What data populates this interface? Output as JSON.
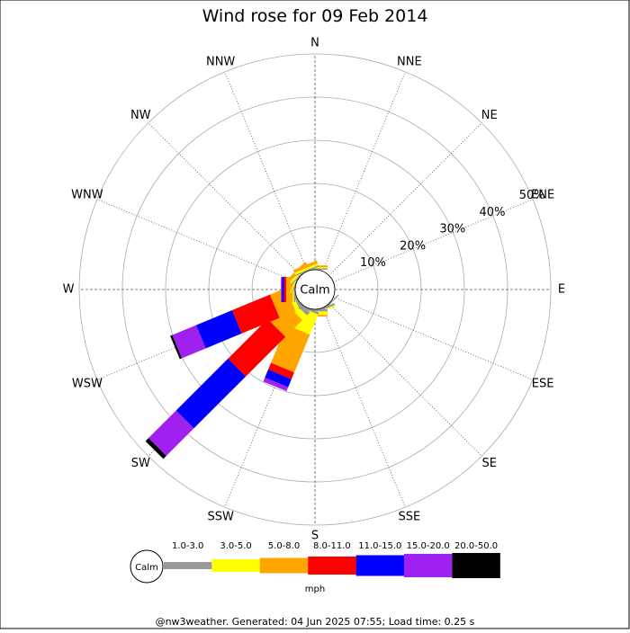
{
  "chart_data": {
    "type": "windrose",
    "title": "Wind rose for 09 Feb 2014",
    "directions": [
      "N",
      "NNE",
      "NE",
      "ENE",
      "E",
      "ESE",
      "SE",
      "SSE",
      "S",
      "SSW",
      "SW",
      "WSW",
      "W",
      "WNW",
      "NW",
      "NNW"
    ],
    "calm_label": "Calm",
    "rlim": [
      0,
      50
    ],
    "rticks": [
      {
        "value": 10,
        "label": "10%"
      },
      {
        "value": 20,
        "label": "20%"
      },
      {
        "value": 30,
        "label": "30%"
      },
      {
        "value": 40,
        "label": "40%"
      },
      {
        "value": 50,
        "label": "50%"
      }
    ],
    "series": [
      {
        "name": "1.0-3.0",
        "color": "#999999",
        "values": [
          0.3,
          0,
          0,
          0,
          0,
          0,
          0.3,
          0.5,
          0.5,
          0.5,
          1,
          0.5,
          0.3,
          0.2,
          0.3,
          0.3
        ]
      },
      {
        "name": "3.0-5.0",
        "color": "#ffff00",
        "values": [
          0.3,
          0,
          0,
          0,
          0,
          0,
          0,
          0.3,
          0.8,
          5,
          1.5,
          1,
          0.3,
          0.3,
          0.5,
          0.5
        ]
      },
      {
        "name": "5.0-8.0",
        "color": "#ffa500",
        "values": [
          0.4,
          0,
          0,
          0,
          0,
          0,
          0,
          0,
          0.4,
          9.5,
          5.5,
          4,
          1.5,
          0.5,
          0.8,
          0.7
        ]
      },
      {
        "name": "8.0-11.0",
        "color": "#ff0000",
        "values": [
          0,
          0,
          0,
          0,
          0,
          0,
          0,
          0,
          0,
          1.7,
          13,
          9.5,
          0.5,
          0,
          0,
          0
        ]
      },
      {
        "name": "11.0-15.0",
        "color": "#0000ff",
        "values": [
          0,
          0,
          0,
          0,
          0,
          0,
          0,
          0,
          0,
          2,
          17,
          9,
          0.5,
          0,
          0,
          0
        ]
      },
      {
        "name": "15.0-20.0",
        "color": "#a020f0",
        "values": [
          0,
          0,
          0,
          0,
          0,
          0,
          0,
          0,
          0,
          1,
          9,
          6,
          0.2,
          0,
          0,
          0
        ]
      },
      {
        "name": "20.0-50.0",
        "color": "#000000",
        "values": [
          0,
          0,
          0,
          0,
          0,
          0,
          0,
          0,
          0,
          0,
          1,
          0.5,
          0,
          0,
          0,
          0
        ]
      }
    ],
    "legend_units": "mph",
    "footer": "@nw3weather. Generated: 04 Jun 2025 07:55; Load time: 0.25 s"
  }
}
